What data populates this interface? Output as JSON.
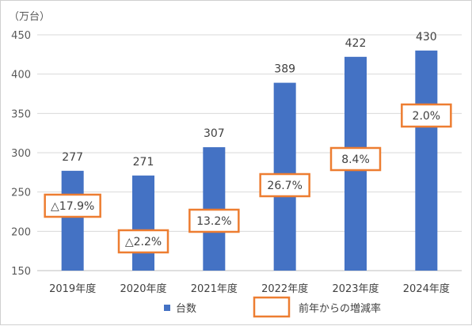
{
  "chart_data": {
    "type": "bar",
    "unit_label": "（万台）",
    "categories": [
      "2019年度",
      "2020年度",
      "2021年度",
      "2022年度",
      "2023年度",
      "2024年度"
    ],
    "series": [
      {
        "name": "台数",
        "values": [
          277,
          271,
          307,
          389,
          422,
          430
        ],
        "value_labels": [
          "277",
          "271",
          "307",
          "389",
          "422",
          "430"
        ],
        "color": "#4472C4"
      }
    ],
    "annotations": {
      "name": "前年からの増減率",
      "border_color": "#ED7D31",
      "labels": [
        "△17.9%",
        "△2.2%",
        "13.2%",
        "26.7%",
        "8.4%",
        "2.0%"
      ],
      "values_percent": [
        -17.9,
        -2.2,
        13.2,
        26.7,
        8.4,
        2.0
      ]
    },
    "ylim": [
      150,
      450
    ],
    "yticks": [
      150,
      200,
      250,
      300,
      350,
      400,
      450
    ],
    "grid": true,
    "legend_position": "bottom"
  }
}
